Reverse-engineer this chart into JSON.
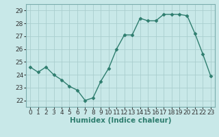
{
  "x": [
    0,
    1,
    2,
    3,
    4,
    5,
    6,
    7,
    8,
    9,
    10,
    11,
    12,
    13,
    14,
    15,
    16,
    17,
    18,
    19,
    20,
    21,
    22,
    23
  ],
  "y": [
    24.6,
    24.2,
    24.6,
    24.0,
    23.6,
    23.1,
    22.8,
    22.0,
    22.2,
    23.5,
    24.5,
    26.0,
    27.1,
    27.1,
    28.4,
    28.2,
    28.2,
    28.7,
    28.7,
    28.7,
    28.6,
    27.2,
    25.6,
    23.9
  ],
  "xlabel": "Humidex (Indice chaleur)",
  "ylim": [
    21.5,
    29.5
  ],
  "xlim": [
    -0.5,
    23.5
  ],
  "yticks": [
    22,
    23,
    24,
    25,
    26,
    27,
    28,
    29
  ],
  "xticks": [
    0,
    1,
    2,
    3,
    4,
    5,
    6,
    7,
    8,
    9,
    10,
    11,
    12,
    13,
    14,
    15,
    16,
    17,
    18,
    19,
    20,
    21,
    22,
    23
  ],
  "line_color": "#2e7d6e",
  "marker": "D",
  "marker_size": 2.5,
  "bg_color": "#c8e8e8",
  "grid_color": "#aacece",
  "tick_label_fontsize": 6.5,
  "xlabel_fontsize": 7.5,
  "linewidth": 1.0
}
